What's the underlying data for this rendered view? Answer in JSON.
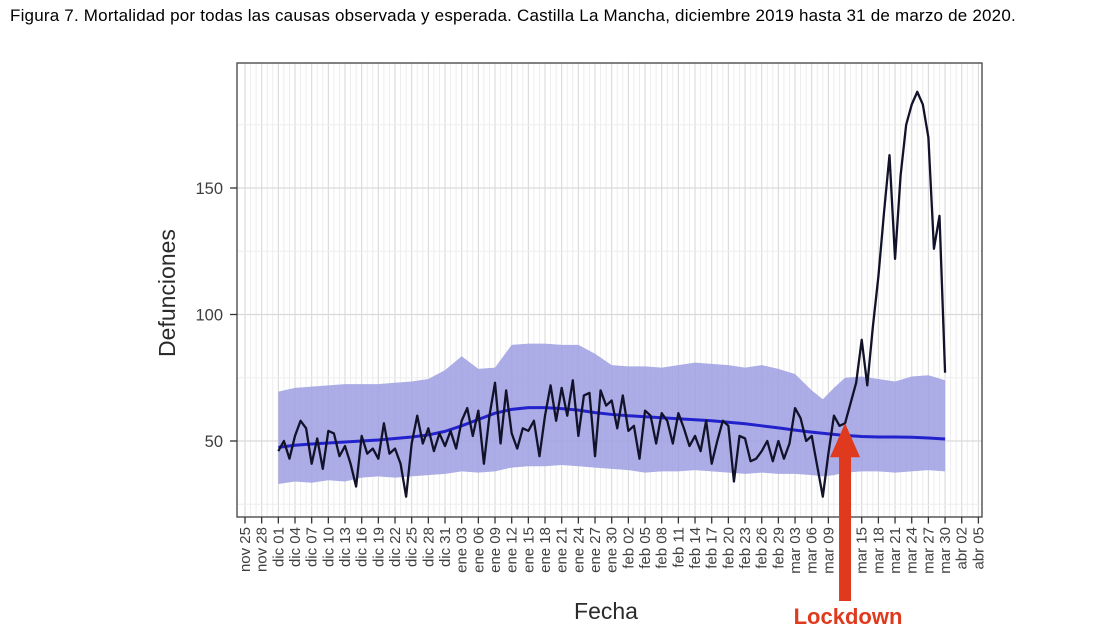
{
  "figure": {
    "caption": "Figura 7. Mortalidad por todas las causas observada y esperada. Castilla La Mancha, diciembre 2019 hasta 31 de marzo de 2020."
  },
  "chart_data": {
    "type": "line",
    "title": "Figura 7. Mortalidad por todas las causas observada y esperada. Castilla La Mancha, diciembre 2019 hasta 31 de marzo de 2020.",
    "xlabel": "Fecha",
    "ylabel": "Defunciones",
    "ylim": [
      20,
      199
    ],
    "y_major_ticks": [
      50,
      100,
      150
    ],
    "y_minor_gridlines": [
      25,
      75,
      125,
      175
    ],
    "grid": "on",
    "legend": "none",
    "x_tick_interval_days": 3,
    "x_tick_labels": [
      "nov 25",
      "nov 28",
      "dic 01",
      "dic 04",
      "dic 07",
      "dic 10",
      "dic 13",
      "dic 16",
      "dic 19",
      "dic 22",
      "dic 25",
      "dic 28",
      "dic 31",
      "ene 03",
      "ene 06",
      "ene 09",
      "ene 12",
      "ene 15",
      "ene 18",
      "ene 21",
      "ene 24",
      "ene 27",
      "ene 30",
      "feb 02",
      "feb 05",
      "feb 08",
      "feb 11",
      "feb 14",
      "feb 17",
      "feb 20",
      "feb 23",
      "feb 26",
      "feb 29",
      "mar 03",
      "mar 06",
      "mar 09",
      "mar 12",
      "mar 15",
      "mar 18",
      "mar 21",
      "mar 24",
      "mar 27",
      "mar 30",
      "abr 02",
      "abr 05"
    ],
    "series": [
      {
        "name": "observed-mortality",
        "color": "#12122a",
        "start_day": 6,
        "note": "daily values dic 01 2019 to mar 30 2020; day index relative to nov 25",
        "values": [
          46,
          50,
          43,
          52,
          58,
          55,
          41,
          51,
          39,
          54,
          53,
          44,
          48,
          41,
          32,
          52,
          45,
          47,
          43,
          57,
          45,
          47,
          41,
          28,
          49,
          60,
          49,
          55,
          46,
          53,
          48,
          54,
          47,
          58,
          63,
          52,
          62,
          41,
          60,
          73,
          49,
          70,
          53,
          47,
          55,
          54,
          58,
          44,
          60,
          72,
          58,
          71,
          60,
          74,
          52,
          68,
          69,
          44,
          70,
          64,
          66,
          55,
          68,
          54,
          56,
          43,
          62,
          60,
          49,
          61,
          58,
          49,
          61,
          55,
          48,
          52,
          46,
          58,
          41,
          50,
          58,
          56,
          34,
          52,
          51,
          42,
          43,
          46,
          50,
          42,
          50,
          43,
          49,
          63,
          59,
          50,
          52,
          40,
          28,
          45,
          60,
          56,
          57,
          65,
          73,
          90,
          72,
          95,
          115,
          140,
          163,
          122,
          155,
          175,
          183,
          188,
          183,
          170,
          126,
          139,
          77
        ]
      },
      {
        "name": "expected-mortality",
        "color": "#2222cc",
        "points": [
          [
            6,
            47.5
          ],
          [
            9,
            48.3
          ],
          [
            12,
            48.8
          ],
          [
            15,
            49.2
          ],
          [
            18,
            49.6
          ],
          [
            21,
            50
          ],
          [
            24,
            50.4
          ],
          [
            27,
            51
          ],
          [
            30,
            51.6
          ],
          [
            33,
            52.4
          ],
          [
            36,
            53.8
          ],
          [
            39,
            56
          ],
          [
            42,
            58.5
          ],
          [
            45,
            61
          ],
          [
            48,
            62.5
          ],
          [
            51,
            63.2
          ],
          [
            54,
            63.2
          ],
          [
            57,
            62.8
          ],
          [
            60,
            62.2
          ],
          [
            63,
            61.2
          ],
          [
            66,
            60.5
          ],
          [
            69,
            60
          ],
          [
            72,
            59.6
          ],
          [
            75,
            59.2
          ],
          [
            78,
            58.8
          ],
          [
            81,
            58.4
          ],
          [
            84,
            58
          ],
          [
            87,
            57.4
          ],
          [
            90,
            56.8
          ],
          [
            93,
            56
          ],
          [
            96,
            55.2
          ],
          [
            99,
            54.3
          ],
          [
            102,
            53.5
          ],
          [
            105,
            52.8
          ],
          [
            108,
            52.2
          ],
          [
            111,
            51.8
          ],
          [
            114,
            51.6
          ],
          [
            117,
            51.6
          ],
          [
            120,
            51.5
          ],
          [
            123,
            51.2
          ],
          [
            126,
            50.8
          ]
        ]
      }
    ],
    "band": {
      "name": "expected-95ci-band",
      "color": "#9e9ee2",
      "opacity": 0.85,
      "points": [
        [
          6,
          33,
          69.5
        ],
        [
          9,
          34,
          71
        ],
        [
          12,
          33.5,
          71.5
        ],
        [
          15,
          34.5,
          72
        ],
        [
          18,
          34,
          72.5
        ],
        [
          21,
          35.5,
          72.5
        ],
        [
          24,
          36,
          72.5
        ],
        [
          27,
          35.5,
          73
        ],
        [
          30,
          36,
          73.5
        ],
        [
          33,
          36.5,
          74.5
        ],
        [
          36,
          37,
          78
        ],
        [
          39,
          38,
          83.5
        ],
        [
          42,
          37.5,
          78.5
        ],
        [
          45,
          38,
          79
        ],
        [
          48,
          39.5,
          88
        ],
        [
          51,
          40,
          88.5
        ],
        [
          54,
          40,
          88.5
        ],
        [
          57,
          40.5,
          88
        ],
        [
          60,
          40,
          88
        ],
        [
          63,
          39.5,
          84.5
        ],
        [
          66,
          39,
          80
        ],
        [
          69,
          38.5,
          79.5
        ],
        [
          72,
          37.5,
          79.5
        ],
        [
          75,
          38,
          79
        ],
        [
          78,
          38,
          80
        ],
        [
          81,
          38.5,
          81
        ],
        [
          84,
          38,
          80.5
        ],
        [
          87,
          37.5,
          80
        ],
        [
          90,
          37,
          79
        ],
        [
          93,
          37.5,
          80
        ],
        [
          96,
          37,
          78.5
        ],
        [
          99,
          37,
          76.5
        ],
        [
          102,
          36.5,
          70
        ],
        [
          104,
          36,
          66.5
        ],
        [
          106,
          36.5,
          71
        ],
        [
          108,
          37.5,
          75
        ],
        [
          111,
          38,
          75.5
        ],
        [
          114,
          38,
          74.5
        ],
        [
          117,
          37.5,
          73.5
        ],
        [
          120,
          38,
          75.5
        ],
        [
          123,
          38.5,
          76
        ],
        [
          126,
          38,
          74
        ]
      ]
    },
    "annotation": {
      "label": "Lockdown",
      "day": 108,
      "date": "mar 12",
      "arrow_tip_value": 57,
      "color": "#e03a1e"
    },
    "colors": {
      "grid_minor": "#ededed",
      "grid_major": "#d9d9d9",
      "panel_border": "#4d4d4d",
      "tick_text": "#3f3f3f",
      "axis_title": "#2b2b2b"
    },
    "y_tick_labels": [
      "50",
      "100",
      "150"
    ]
  }
}
